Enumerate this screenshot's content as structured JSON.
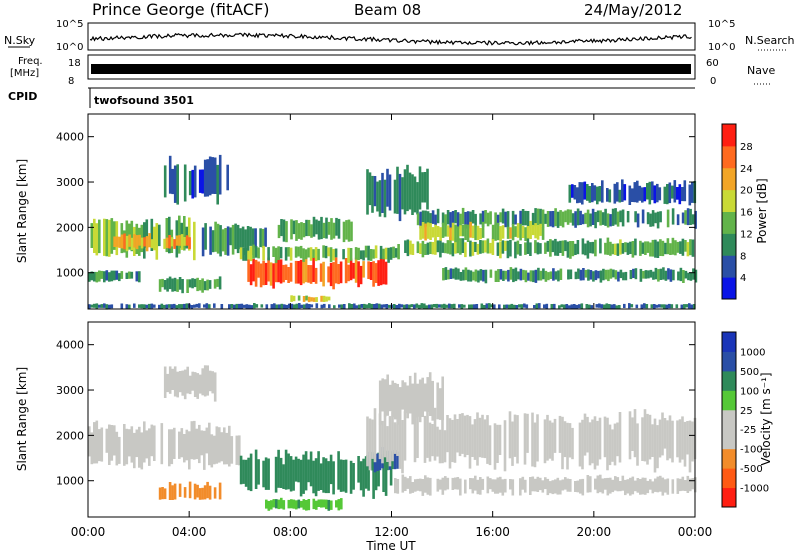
{
  "header": {
    "station": "Prince George (fitACF)",
    "beam": "Beam 08",
    "date": "24/May/2012"
  },
  "noise_panel": {
    "left_label": "N.Sky",
    "right_label": "N.Search",
    "left_ticks": [
      "10^5",
      "10^0"
    ],
    "right_ticks": [
      "10^5",
      "10^0"
    ]
  },
  "freq_panel": {
    "left_label_line1": "Freq.",
    "left_label_line2": "[MHz]",
    "right_label": "Nave",
    "left_ticks": [
      "18",
      "8"
    ],
    "right_ticks": [
      "60",
      "0"
    ]
  },
  "cpid_panel": {
    "label": "CPID",
    "program": "twofsound 3501"
  },
  "time_axis": {
    "label": "Time UT",
    "ticks": [
      "00:00",
      "04:00",
      "08:00",
      "12:00",
      "16:00",
      "20:00",
      "00:00"
    ]
  },
  "colors": {
    "power": [
      "#0a14e6",
      "#2a4fa6",
      "#2f8a5a",
      "#62b34a",
      "#c9d936",
      "#f2a526",
      "#ff6a1f",
      "#ff1f12"
    ],
    "velocity": [
      "#ff1f12",
      "#ff5a14",
      "#f28c2a",
      "#c8c8c4",
      "#c8c8c4",
      "#55c837",
      "#2f8a5a",
      "#2a4fa6",
      "#1a35b8"
    ]
  },
  "chart_data": [
    {
      "type": "heatmap",
      "title": "Power",
      "xlabel": "Time UT",
      "ylabel": "Slant Range [km]",
      "xlim": [
        0,
        24
      ],
      "ylim": [
        200,
        4500
      ],
      "yticks": [
        1000,
        2000,
        3000,
        4000
      ],
      "colorbar": {
        "label": "Power [dB]",
        "ticks": [
          "4",
          "8",
          "12",
          "16",
          "20",
          "24",
          "28"
        ],
        "range": [
          0,
          32
        ]
      },
      "regions": [
        {
          "t0": 0.0,
          "t1": 4.2,
          "r0": 1350,
          "r1": 2200,
          "v": 14
        },
        {
          "t0": 1.0,
          "t1": 4.0,
          "r0": 1500,
          "r1": 1850,
          "v": 22
        },
        {
          "t0": 0.0,
          "t1": 2.0,
          "r0": 800,
          "r1": 1050,
          "v": 9
        },
        {
          "t0": 2.8,
          "t1": 5.2,
          "r0": 580,
          "r1": 900,
          "v": 12
        },
        {
          "t0": 4.5,
          "t1": 7.0,
          "r0": 1400,
          "r1": 2100,
          "v": 10
        },
        {
          "t0": 6.3,
          "t1": 11.8,
          "r0": 700,
          "r1": 1300,
          "v": 27
        },
        {
          "t0": 6.0,
          "t1": 12.3,
          "r0": 1250,
          "r1": 1600,
          "v": 14
        },
        {
          "t0": 7.5,
          "t1": 10.5,
          "r0": 1700,
          "r1": 2200,
          "v": 12
        },
        {
          "t0": 8.0,
          "t1": 9.5,
          "r0": 350,
          "r1": 500,
          "v": 19
        },
        {
          "t0": 11.0,
          "t1": 13.5,
          "r0": 2200,
          "r1": 3300,
          "v": 8
        },
        {
          "t0": 12.5,
          "t1": 24.0,
          "r0": 1350,
          "r1": 1750,
          "v": 13
        },
        {
          "t0": 13.0,
          "t1": 24.0,
          "r0": 2000,
          "r1": 2400,
          "v": 10
        },
        {
          "t0": 13.0,
          "t1": 18.0,
          "r0": 1700,
          "r1": 2100,
          "v": 17
        },
        {
          "t0": 14.0,
          "t1": 24.0,
          "r0": 800,
          "r1": 1100,
          "v": 10
        },
        {
          "t0": 3.0,
          "t1": 5.5,
          "r0": 2600,
          "r1": 3500,
          "v": 6
        },
        {
          "t0": 19.0,
          "t1": 24.0,
          "r0": 2500,
          "r1": 3000,
          "v": 7
        },
        {
          "t0": 0.0,
          "t1": 24.0,
          "r0": 200,
          "r1": 320,
          "v": 8
        }
      ]
    },
    {
      "type": "heatmap",
      "title": "Velocity",
      "xlabel": "Time UT",
      "ylabel": "Slant Range [km]",
      "xlim": [
        0,
        24
      ],
      "ylim": [
        200,
        4500
      ],
      "yticks": [
        1000,
        2000,
        3000,
        4000
      ],
      "colorbar": {
        "label": "Velocity [m s⁻¹]",
        "ticks": [
          "-1000",
          "-500",
          "-100",
          "-25",
          "25",
          "100",
          "500",
          "1000"
        ]
      },
      "regions": [
        {
          "t0": 0.0,
          "t1": 6.0,
          "r0": 1300,
          "r1": 2250,
          "v": 0
        },
        {
          "t0": 2.8,
          "t1": 5.2,
          "r0": 550,
          "r1": 950,
          "v": -300
        },
        {
          "t0": 6.0,
          "t1": 12.0,
          "r0": 700,
          "r1": 1600,
          "v": 250
        },
        {
          "t0": 11.0,
          "t1": 12.3,
          "r0": 1200,
          "r1": 1700,
          "v": 600
        },
        {
          "t0": 7.0,
          "t1": 10.0,
          "r0": 350,
          "r1": 600,
          "v": 80
        },
        {
          "t0": 11.0,
          "t1": 24.0,
          "r0": 1300,
          "r1": 2500,
          "v": 0
        },
        {
          "t0": 12.0,
          "t1": 24.0,
          "r0": 700,
          "r1": 1100,
          "v": 0
        },
        {
          "t0": 11.5,
          "t1": 14.0,
          "r0": 2300,
          "r1": 3300,
          "v": 0
        },
        {
          "t0": 3.0,
          "t1": 5.0,
          "r0": 2800,
          "r1": 3500,
          "v": 0
        }
      ]
    }
  ]
}
